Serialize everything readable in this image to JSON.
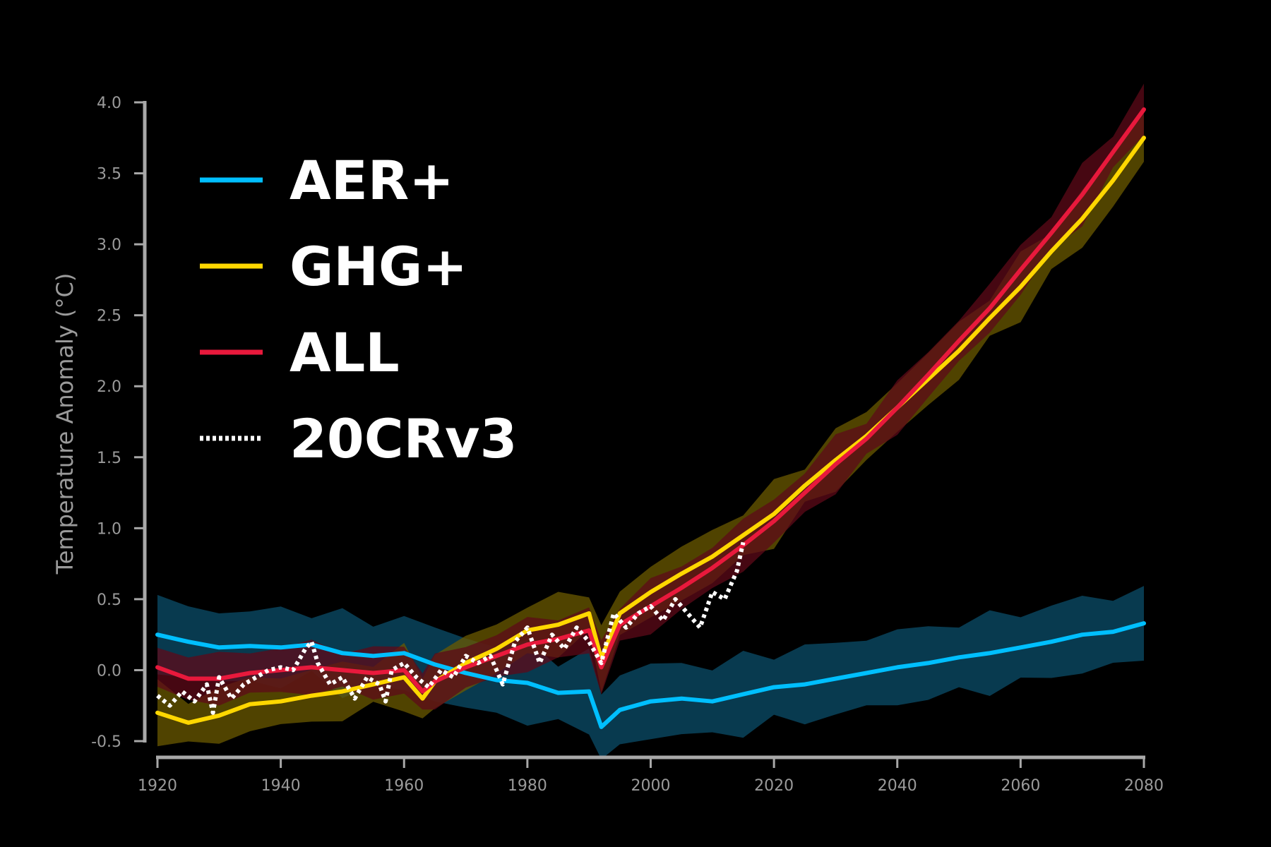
{
  "colors": {
    "background": "#000000",
    "axis": "#a8a8a8",
    "tick_text": "#9a9a9a",
    "legend_text": "#ffffff"
  },
  "chart_data": {
    "type": "line",
    "title": "",
    "xlabel": "",
    "ylabel": "Temperature Anomaly (°C)",
    "xlim": [
      1920,
      2080
    ],
    "ylim": [
      -0.5,
      4.0
    ],
    "x_ticks": [
      "1920",
      "1940",
      "1960",
      "1980",
      "2000",
      "2020",
      "2040",
      "2060",
      "2080"
    ],
    "y_ticks": [
      "4.0",
      "3.5",
      "3.0",
      "2.5",
      "2.0",
      "1.5",
      "1.0",
      "0.5",
      "0.0",
      "-0.5"
    ],
    "grid": false,
    "legend_position": "top-left",
    "series": [
      {
        "name": "AER+",
        "color": "#00bfff",
        "band_color": "#0b4d6a",
        "style": "solid",
        "band_width": 0.25,
        "x": [
          1920,
          1925,
          1930,
          1935,
          1940,
          1945,
          1950,
          1955,
          1960,
          1965,
          1970,
          1975,
          1980,
          1985,
          1990,
          1992,
          1995,
          2000,
          2005,
          2010,
          2015,
          2020,
          2025,
          2030,
          2035,
          2040,
          2045,
          2050,
          2055,
          2060,
          2065,
          2070,
          2075,
          2080
        ],
        "y": [
          0.25,
          0.2,
          0.16,
          0.17,
          0.16,
          0.18,
          0.12,
          0.1,
          0.12,
          0.04,
          -0.02,
          -0.07,
          -0.09,
          -0.16,
          -0.15,
          -0.4,
          -0.28,
          -0.22,
          -0.2,
          -0.22,
          -0.17,
          -0.12,
          -0.1,
          -0.06,
          -0.02,
          0.02,
          0.05,
          0.09,
          0.12,
          0.16,
          0.2,
          0.25,
          0.27,
          0.33
        ]
      },
      {
        "name": "GHG+",
        "color": "#ffd700",
        "band_color": "#6b5a00",
        "style": "solid",
        "band_width": 0.18,
        "x": [
          1920,
          1925,
          1930,
          1935,
          1940,
          1945,
          1950,
          1955,
          1960,
          1963,
          1965,
          1970,
          1975,
          1980,
          1985,
          1990,
          1992,
          1995,
          2000,
          2005,
          2010,
          2015,
          2020,
          2025,
          2030,
          2035,
          2040,
          2045,
          2050,
          2055,
          2060,
          2065,
          2070,
          2075,
          2080
        ],
        "y": [
          -0.3,
          -0.37,
          -0.32,
          -0.24,
          -0.22,
          -0.18,
          -0.15,
          -0.1,
          -0.05,
          -0.2,
          -0.08,
          0.05,
          0.15,
          0.28,
          0.32,
          0.4,
          0.08,
          0.4,
          0.55,
          0.68,
          0.8,
          0.95,
          1.1,
          1.3,
          1.48,
          1.65,
          1.85,
          2.05,
          2.25,
          2.48,
          2.7,
          2.95,
          3.18,
          3.45,
          3.75
        ]
      },
      {
        "name": "ALL",
        "color": "#e8193c",
        "band_color": "#5e0a18",
        "style": "solid",
        "band_width": 0.16,
        "x": [
          1920,
          1925,
          1930,
          1935,
          1940,
          1945,
          1950,
          1955,
          1960,
          1963,
          1965,
          1970,
          1975,
          1980,
          1985,
          1990,
          1992,
          1995,
          2000,
          2005,
          2010,
          2015,
          2020,
          2025,
          2030,
          2035,
          2040,
          2045,
          2050,
          2055,
          2060,
          2065,
          2070,
          2075,
          2080
        ],
        "y": [
          0.02,
          -0.06,
          -0.06,
          -0.02,
          0.0,
          0.02,
          0.0,
          -0.02,
          0.0,
          -0.15,
          -0.08,
          0.02,
          0.1,
          0.18,
          0.22,
          0.28,
          0.02,
          0.32,
          0.45,
          0.58,
          0.72,
          0.88,
          1.05,
          1.25,
          1.45,
          1.63,
          1.85,
          2.08,
          2.32,
          2.55,
          2.82,
          3.08,
          3.35,
          3.65,
          3.95
        ]
      },
      {
        "name": "20CRv3",
        "color": "#ffffff",
        "band_color": "",
        "style": "dotted",
        "band_width": 0,
        "x": [
          1920,
          1922,
          1924,
          1926,
          1928,
          1929,
          1930,
          1932,
          1934,
          1936,
          1938,
          1940,
          1942,
          1944,
          1945,
          1946,
          1948,
          1950,
          1952,
          1954,
          1956,
          1957,
          1958,
          1960,
          1962,
          1964,
          1966,
          1968,
          1970,
          1972,
          1974,
          1976,
          1978,
          1980,
          1982,
          1984,
          1986,
          1988,
          1990,
          1992,
          1994,
          1996,
          1998,
          2000,
          2002,
          2004,
          2006,
          2008,
          2010,
          2012,
          2014,
          2015
        ],
        "y": [
          -0.18,
          -0.25,
          -0.15,
          -0.22,
          -0.1,
          -0.3,
          -0.05,
          -0.2,
          -0.1,
          -0.05,
          0.0,
          0.02,
          0.0,
          0.15,
          0.2,
          0.05,
          -0.1,
          -0.05,
          -0.2,
          -0.05,
          -0.1,
          -0.22,
          0.0,
          0.05,
          -0.05,
          -0.12,
          0.0,
          -0.05,
          0.1,
          0.05,
          0.1,
          -0.1,
          0.2,
          0.3,
          0.05,
          0.25,
          0.15,
          0.3,
          0.2,
          0.05,
          0.4,
          0.3,
          0.4,
          0.45,
          0.35,
          0.5,
          0.4,
          0.3,
          0.55,
          0.5,
          0.7,
          0.9
        ]
      }
    ]
  }
}
